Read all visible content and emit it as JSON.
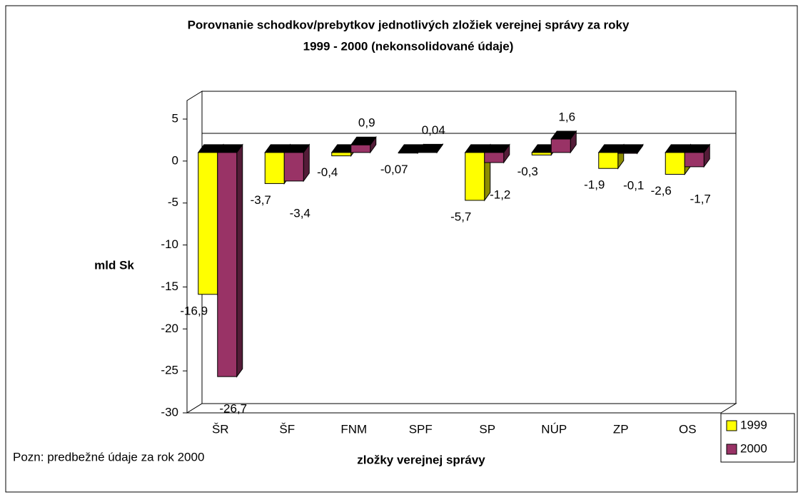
{
  "chart_data": {
    "type": "bar3d",
    "title": [
      "Porovnanie schodkov/prebytkov jednotlivých  zložiek verejnej správy za roky",
      "1999 - 2000 (nekonsolidované údaje)"
    ],
    "y_label": "mld Sk",
    "x_label": "zložky verejnej správy",
    "annotations": [
      "Pozn: predbežné údaje za rok 2000"
    ],
    "categories": [
      "ŠR",
      "ŠF",
      "FNM",
      "SPF",
      "SP",
      "NÚP",
      "ZP",
      "OS"
    ],
    "series": [
      {
        "name": "1999",
        "color": "#ffff00",
        "values": [
          -16.9,
          -3.7,
          -0.4,
          -0.07,
          -5.7,
          -0.3,
          -1.9,
          -2.6
        ],
        "value_labels": [
          "-16,9",
          "-3,7",
          "-0,4",
          "-0,07",
          "-5,7",
          "-0,3",
          "-1,9",
          "-2,6"
        ]
      },
      {
        "name": "2000",
        "color": "#993366",
        "values": [
          -26.7,
          -3.4,
          0.9,
          0.04,
          -1.2,
          1.6,
          -0.1,
          -1.7
        ],
        "value_labels": [
          "-26,7",
          "-3,4",
          "0,9",
          "0,04",
          "-1,2",
          "1,6",
          "-0,1",
          "-1,7"
        ]
      }
    ],
    "ylim": [
      -30,
      5
    ],
    "yticks": [
      5,
      0,
      -5,
      -10,
      -15,
      -20,
      -25,
      -30
    ],
    "legend": "bottom-right"
  }
}
